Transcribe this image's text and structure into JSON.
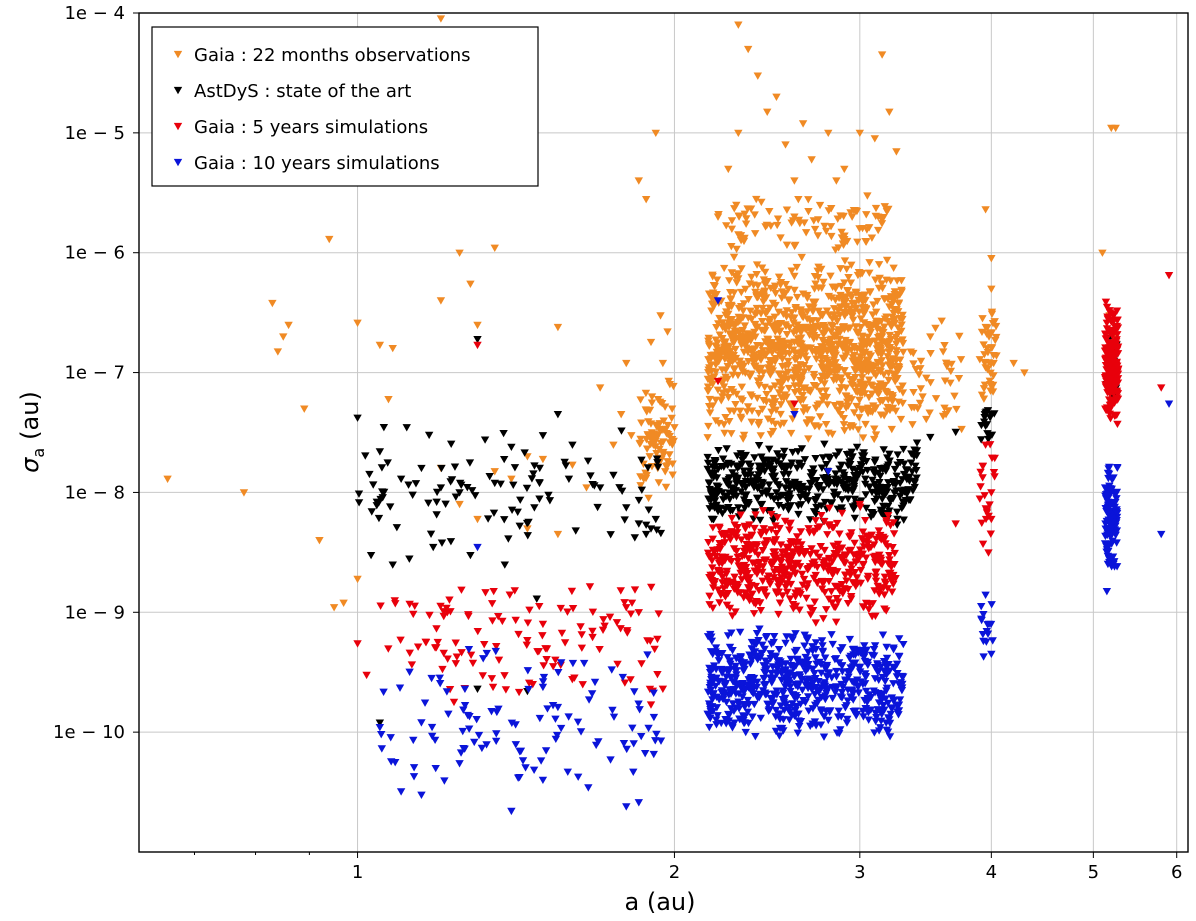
{
  "chart_data": {
    "type": "scatter",
    "xlabel": "a (au)",
    "ylabel": "σ",
    "ylabel_sub": "a",
    "ylabel_unit": "(au)",
    "xscale": "log",
    "yscale": "log",
    "xlim": [
      0.62,
      6.15
    ],
    "ylim": [
      1e-11,
      0.0001
    ],
    "x_ticks": [
      {
        "value": 1,
        "label": "1"
      },
      {
        "value": 2,
        "label": "2"
      },
      {
        "value": 3,
        "label": "3"
      },
      {
        "value": 4,
        "label": "4"
      },
      {
        "value": 5,
        "label": "5"
      },
      {
        "value": 6,
        "label": "6"
      }
    ],
    "y_ticks": [
      {
        "value": 0.0001,
        "label": "1e − 4"
      },
      {
        "value": 1e-05,
        "label": "1e − 5"
      },
      {
        "value": 1e-06,
        "label": "1e − 6"
      },
      {
        "value": 1e-07,
        "label": "1e − 7"
      },
      {
        "value": 1e-08,
        "label": "1e − 8"
      },
      {
        "value": 1e-09,
        "label": "1e − 9"
      },
      {
        "value": 1e-10,
        "label": "1e − 10"
      }
    ],
    "grid": true,
    "legend_position": "top-left",
    "marker": "triangle-down",
    "series": [
      {
        "name": "Gaia : 22 months observations",
        "color": "#f08a24",
        "points": [
          [
            0.66,
            1.3e-08
          ],
          [
            0.78,
            1e-08
          ],
          [
            0.83,
            3.8e-07
          ],
          [
            0.84,
            1.5e-07
          ],
          [
            0.85,
            2e-07
          ],
          [
            0.86,
            2.5e-07
          ],
          [
            0.89,
            5e-08
          ],
          [
            0.92,
            4e-09
          ],
          [
            0.94,
            1.3e-06
          ],
          [
            0.95,
            1.1e-09
          ],
          [
            0.97,
            1.2e-09
          ],
          [
            1.0,
            2.6e-07
          ],
          [
            1.0,
            1.9e-09
          ],
          [
            1.05,
            1.7e-07
          ],
          [
            1.08,
            1.6e-07
          ],
          [
            1.07,
            6e-08
          ],
          [
            1.2,
            4e-07
          ],
          [
            1.2,
            9e-05
          ],
          [
            1.25,
            1e-06
          ],
          [
            1.3,
            2.5e-07
          ],
          [
            1.35,
            1.1e-06
          ],
          [
            1.28,
            5.5e-07
          ],
          [
            1.55,
            2.4e-07
          ],
          [
            1.7,
            7.5e-08
          ],
          [
            1.8,
            1.2e-07
          ],
          [
            1.85,
            4e-06
          ],
          [
            1.88,
            2.8e-06
          ],
          [
            1.92,
            1e-05
          ],
          [
            1.97,
            2.2e-07
          ],
          [
            2.0,
            3.5e-08
          ],
          [
            1.45,
            2e-08
          ],
          [
            1.5,
            1.9e-08
          ],
          [
            1.6,
            1.7e-08
          ],
          [
            1.65,
            1.1e-08
          ],
          [
            1.4,
            1.3e-08
          ],
          [
            1.35,
            1.5e-08
          ],
          [
            1.2,
            1.6e-08
          ],
          [
            1.25,
            8e-09
          ],
          [
            1.3,
            6e-09
          ],
          [
            1.45,
            5e-09
          ],
          [
            1.55,
            4.5e-09
          ],
          [
            1.75,
            2.5e-08
          ],
          [
            1.78,
            4.5e-08
          ],
          [
            1.82,
            3e-08
          ],
          [
            1.9,
            1.8e-07
          ],
          [
            1.95,
            1.2e-07
          ],
          [
            1.98,
            8e-08
          ],
          [
            1.93,
            6e-08
          ],
          [
            1.91,
            2.5e-08
          ],
          [
            1.96,
            1.5e-08
          ],
          [
            1.94,
            3e-07
          ],
          [
            1.89,
            9e-09
          ],
          [
            1.99,
            5e-08
          ],
          [
            1.87,
            1.3e-08
          ],
          [
            2.3,
            8e-05
          ],
          [
            2.35,
            5e-05
          ],
          [
            2.4,
            3e-05
          ],
          [
            2.45,
            1.5e-05
          ],
          [
            2.5,
            2e-05
          ],
          [
            2.55,
            8e-06
          ],
          [
            2.3,
            1e-05
          ],
          [
            2.25,
            5e-06
          ],
          [
            2.2,
            2e-06
          ],
          [
            2.6,
            4e-06
          ],
          [
            2.65,
            1.2e-05
          ],
          [
            2.7,
            6e-06
          ],
          [
            2.8,
            1e-05
          ],
          [
            2.9,
            5e-06
          ],
          [
            3.0,
            1e-05
          ],
          [
            3.1,
            9e-06
          ],
          [
            3.15,
            4.5e-05
          ],
          [
            3.2,
            1.5e-05
          ],
          [
            3.25,
            7e-06
          ],
          [
            3.05,
            3e-06
          ],
          [
            2.95,
            2e-06
          ],
          [
            2.85,
            4e-06
          ],
          [
            2.75,
            2.5e-06
          ],
          [
            2.6,
            2e-06
          ],
          [
            3.5,
            2e-07
          ],
          [
            3.6,
            1.5e-07
          ],
          [
            3.95,
            2.3e-06
          ],
          [
            4.0,
            9e-07
          ],
          [
            4.0,
            5e-07
          ],
          [
            3.98,
            2e-07
          ],
          [
            4.02,
            1.2e-07
          ],
          [
            3.99,
            8e-08
          ],
          [
            4.3,
            1e-07
          ],
          [
            4.2,
            1.2e-07
          ],
          [
            5.1,
            1e-06
          ],
          [
            5.25,
            1.1e-05
          ],
          [
            5.2,
            1.1e-05
          ],
          [
            5.18,
            3e-07
          ],
          [
            5.22,
            2e-07
          ],
          [
            5.15,
            1.5e-07
          ]
        ],
        "cluster_regions": [
          {
            "x": [
              2.15,
              3.3
            ],
            "y": [
              2.5e-08,
              1e-06
            ],
            "count": 1100
          },
          {
            "x": [
              2.2,
              3.2
            ],
            "y": [
              1e-06,
              3e-06
            ],
            "count": 90
          },
          {
            "x": [
              1.85,
              2.0
            ],
            "y": [
              8e-09,
              1e-07
            ],
            "count": 80
          },
          {
            "x": [
              3.35,
              3.75
            ],
            "y": [
              3e-08,
              3e-07
            ],
            "count": 40
          },
          {
            "x": [
              3.9,
              4.05
            ],
            "y": [
              5e-08,
              4e-07
            ],
            "count": 40
          }
        ]
      },
      {
        "name": "AstDyS : state of the art",
        "color": "#000000",
        "points": [
          [
            1.0,
            4.2e-08
          ],
          [
            1.05,
            2.2e-08
          ],
          [
            1.1,
            1.3e-08
          ],
          [
            1.15,
            1.6e-08
          ],
          [
            1.2,
            1.1e-08
          ],
          [
            1.25,
            1e-08
          ],
          [
            1.3,
            1.9e-07
          ],
          [
            1.35,
            1.2e-08
          ],
          [
            1.4,
            2.4e-08
          ],
          [
            1.5,
            3e-08
          ],
          [
            1.55,
            4.5e-08
          ],
          [
            1.6,
            2.5e-08
          ],
          [
            1.7,
            1.1e-08
          ],
          [
            1.75,
            1.4e-08
          ],
          [
            1.8,
            7.5e-09
          ],
          [
            1.85,
            5.5e-09
          ],
          [
            1.88,
            4.5e-09
          ],
          [
            1.9,
            5e-09
          ],
          [
            1.92,
            6e-09
          ],
          [
            1.03,
            3e-09
          ],
          [
            1.08,
            2.5e-09
          ],
          [
            1.12,
            2.8e-09
          ],
          [
            1.18,
            3.5e-09
          ],
          [
            1.28,
            3e-09
          ],
          [
            1.48,
            1.3e-09
          ],
          [
            1.38,
            2.5e-09
          ],
          [
            1.05,
            1.2e-10
          ],
          [
            1.3,
            2.3e-10
          ],
          [
            1.45,
            2.2e-10
          ],
          [
            2.2,
            7e-09
          ],
          [
            2.3,
            7.5e-09
          ],
          [
            2.4,
            9e-09
          ],
          [
            2.5,
            1e-08
          ],
          [
            2.6,
            1.1e-08
          ],
          [
            2.7,
            1.2e-08
          ],
          [
            2.8,
            1.3e-08
          ],
          [
            2.9,
            1.4e-08
          ],
          [
            3.0,
            1.6e-08
          ],
          [
            3.1,
            1.8e-08
          ],
          [
            3.2,
            2.1e-08
          ],
          [
            3.3,
            2.3e-08
          ],
          [
            3.4,
            2.6e-08
          ],
          [
            3.5,
            2.9e-08
          ],
          [
            3.7,
            3.2e-08
          ],
          [
            3.95,
            3.6e-08
          ],
          [
            4.0,
            4.5e-08
          ],
          [
            3.98,
            3e-08
          ],
          [
            5.15,
            8e-08
          ],
          [
            5.2,
            1.5e-07
          ],
          [
            5.22,
            1.2e-07
          ],
          [
            5.25,
            7e-08
          ]
        ],
        "cluster_regions": [
          {
            "x": [
              2.15,
              3.4
            ],
            "y": [
              5e-09,
              2.8e-08
            ],
            "count": 460
          },
          {
            "x": [
              1.0,
              1.95
            ],
            "y": [
              3e-09,
              4e-08
            ],
            "count": 100
          },
          {
            "x": [
              3.9,
              4.03
            ],
            "y": [
              2.5e-08,
              5e-08
            ],
            "count": 14
          },
          {
            "x": [
              5.15,
              5.27
            ],
            "y": [
              5e-08,
              2e-07
            ],
            "count": 26
          }
        ]
      },
      {
        "name": "Gaia : 5 years simulations",
        "color": "#e8000b",
        "points": [
          [
            1.3,
            1.7e-07
          ],
          [
            1.0,
            5.5e-10
          ],
          [
            1.02,
            3e-10
          ],
          [
            1.5,
            8e-10
          ],
          [
            1.8,
            1.1e-09
          ],
          [
            1.85,
            1e-09
          ],
          [
            1.9,
            1.7e-10
          ],
          [
            1.95,
            2.3e-10
          ],
          [
            2.2,
            8.5e-08
          ],
          [
            2.6,
            5.5e-08
          ],
          [
            3.95,
            2.5e-08
          ],
          [
            4.0,
            1e-08
          ],
          [
            4.0,
            6e-09
          ],
          [
            3.7,
            5.5e-09
          ],
          [
            5.8,
            7.5e-08
          ],
          [
            5.9,
            6.5e-07
          ],
          [
            3.2,
            3e-09
          ],
          [
            3.0,
            8e-09
          ]
        ],
        "cluster_regions": [
          {
            "x": [
              2.15,
              3.25
            ],
            "y": [
              8e-10,
              8e-09
            ],
            "count": 520
          },
          {
            "x": [
              1.05,
              1.95
            ],
            "y": [
              1.5e-10,
              2e-09
            ],
            "count": 120
          },
          {
            "x": [
              3.9,
              4.03
            ],
            "y": [
              3e-09,
              3e-08
            ],
            "count": 22
          },
          {
            "x": [
              5.13,
              5.28
            ],
            "y": [
              3.5e-08,
              4e-07
            ],
            "count": 180
          }
        ]
      },
      {
        "name": "Gaia : 10 years simulations",
        "color": "#0a14d9",
        "points": [
          [
            1.05,
            1.1e-10
          ],
          [
            1.1,
            3.2e-11
          ],
          [
            1.15,
            3e-11
          ],
          [
            1.25,
            5.5e-11
          ],
          [
            1.4,
            2.2e-11
          ],
          [
            1.5,
            4e-11
          ],
          [
            1.8,
            2.4e-11
          ],
          [
            1.85,
            2.6e-11
          ],
          [
            2.2,
            4e-07
          ],
          [
            2.6,
            4.5e-08
          ],
          [
            2.8,
            1.5e-08
          ],
          [
            3.95,
            1.4e-09
          ],
          [
            3.98,
            8e-10
          ],
          [
            4.0,
            4.5e-10
          ],
          [
            5.15,
            1.5e-09
          ],
          [
            5.9,
            5.5e-08
          ],
          [
            5.8,
            4.5e-09
          ],
          [
            1.3,
            3.5e-09
          ]
        ],
        "cluster_regions": [
          {
            "x": [
              2.15,
              3.3
            ],
            "y": [
              8e-11,
              8e-10
            ],
            "count": 620
          },
          {
            "x": [
              1.05,
              1.95
            ],
            "y": [
              2e-11,
              6e-10
            ],
            "count": 110
          },
          {
            "x": [
              3.9,
              4.03
            ],
            "y": [
              4e-10,
              1.5e-09
            ],
            "count": 14
          },
          {
            "x": [
              5.13,
              5.27
            ],
            "y": [
              1.8e-09,
              2e-08
            ],
            "count": 110
          }
        ]
      }
    ]
  }
}
